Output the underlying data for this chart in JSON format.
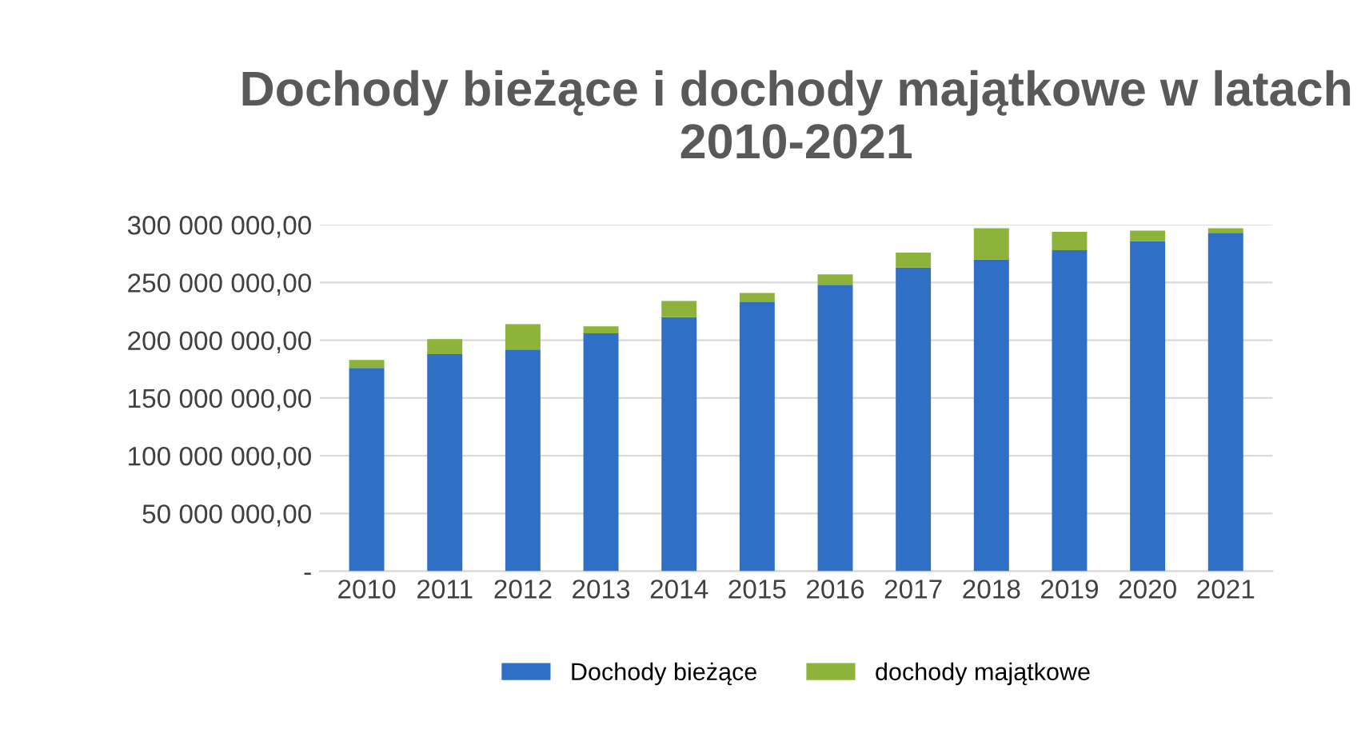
{
  "chart_data": {
    "type": "bar",
    "title": "Dochody bieżące i dochody majątkowe w latach\n2010-2021",
    "categories": [
      "2010",
      "2011",
      "2012",
      "2013",
      "2014",
      "2015",
      "2016",
      "2017",
      "2018",
      "2019",
      "2020",
      "2021"
    ],
    "stacked": true,
    "series": [
      {
        "name": "Dochody bieżące",
        "color": "#2f6fc6",
        "values": [
          176000000,
          188000000,
          192000000,
          206000000,
          220000000,
          233000000,
          248000000,
          263000000,
          270000000,
          278000000,
          286000000,
          293000000
        ]
      },
      {
        "name": "dochody majątkowe",
        "color": "#8db33a",
        "values": [
          7000000,
          13000000,
          22000000,
          6000000,
          14000000,
          8000000,
          9000000,
          13000000,
          27000000,
          16000000,
          9000000,
          4000000
        ]
      }
    ],
    "ylim": [
      0,
      300000000
    ],
    "yticks": [
      {
        "value": 0,
        "label": "-"
      },
      {
        "value": 50000000,
        "label": "50 000 000,00"
      },
      {
        "value": 100000000,
        "label": "100 000 000,00"
      },
      {
        "value": 150000000,
        "label": "150 000 000,00"
      },
      {
        "value": 200000000,
        "label": "200 000 000,00"
      },
      {
        "value": 250000000,
        "label": "250 000 000,00"
      },
      {
        "value": 300000000,
        "label": "300 000 000,00"
      }
    ],
    "grid": "y",
    "legend": "bottom"
  }
}
